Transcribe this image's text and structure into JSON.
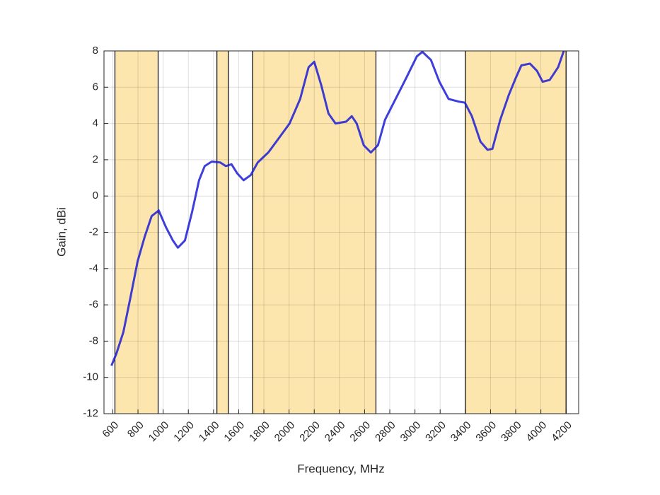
{
  "chart_data": {
    "type": "line",
    "xlabel": "Frequency, MHz",
    "ylabel": "Gain, dBi",
    "x": [
      589,
      628,
      684,
      740,
      797,
      853,
      909,
      965,
      1021,
      1077,
      1117,
      1173,
      1229,
      1285,
      1330,
      1386,
      1453,
      1498,
      1543,
      1588,
      1639,
      1695,
      1751,
      1835,
      1920,
      2004,
      2088,
      2155,
      2200,
      2256,
      2313,
      2369,
      2453,
      2498,
      2537,
      2593,
      2650,
      2706,
      2762,
      2846,
      2930,
      3015,
      3059,
      3127,
      3194,
      3267,
      3351,
      3396,
      3452,
      3520,
      3576,
      3615,
      3677,
      3744,
      3800,
      3845,
      3913,
      3969,
      4014,
      4070,
      4137,
      4182
    ],
    "series": [
      {
        "color": "#1c1cd6",
        "values": [
          -9.35,
          -8.7,
          -7.5,
          -5.6,
          -3.6,
          -2.25,
          -1.1,
          -0.8,
          -1.7,
          -2.45,
          -2.85,
          -2.45,
          -0.9,
          0.87,
          1.65,
          1.9,
          1.85,
          1.65,
          1.75,
          1.25,
          0.87,
          1.15,
          1.85,
          2.4,
          3.2,
          4.0,
          5.35,
          7.1,
          7.4,
          6.1,
          4.55,
          4.0,
          4.1,
          4.4,
          4.0,
          2.8,
          2.4,
          2.8,
          4.2,
          5.35,
          6.5,
          7.7,
          7.95,
          7.5,
          6.3,
          5.35,
          5.2,
          5.15,
          4.4,
          3.0,
          2.55,
          2.6,
          4.2,
          5.55,
          6.5,
          7.2,
          7.3,
          6.9,
          6.3,
          6.4,
          7.1,
          8.0
        ]
      }
    ],
    "bands": [
      [
        617,
        960
      ],
      [
        1427,
        1518
      ],
      [
        1710,
        2690
      ],
      [
        3400,
        4200
      ]
    ],
    "band_color": "#fde6ad",
    "xlim": [
      530,
      4300
    ],
    "ylim": [
      -12,
      8
    ],
    "xticks": [
      600,
      800,
      1000,
      1200,
      1400,
      1600,
      1800,
      2000,
      2200,
      2400,
      2600,
      2800,
      3000,
      3200,
      3400,
      3600,
      3800,
      4000,
      4200
    ],
    "yticks": [
      -12,
      -10,
      -8,
      -6,
      -4,
      -2,
      0,
      2,
      4,
      6,
      8
    ],
    "grid": true
  }
}
